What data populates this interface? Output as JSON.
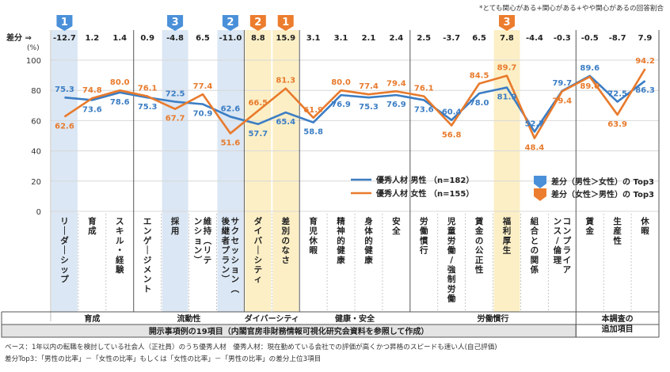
{
  "note_top": "*とても関心がある+関心がある+やや関心があるの回答割合",
  "diff_label": "差分 ⇒",
  "unit_label": "(%)",
  "group_footer": "開示事項例の19項目（内閣官房非財務情報可視化研究会資料を参照して作成）",
  "extra_footer": "本調査の\n追加項目",
  "footnotes": [
    "ベース：1年以内の転職を検討している社会人（正社員）のうち優秀人材　優秀人材：現在勤めている会社での評価が高くかつ昇格のスピードも速い人(自己評価)",
    "差分Top3：「男性の比率」－「女性の比率」もしくは「女性の比率」－「男性の比率」の差分上位3項目"
  ],
  "colors": {
    "male": "#3b7dc4",
    "female": "#e87a2c",
    "male_highlight": "#dbe7f4",
    "female_highlight": "#fcefc6",
    "male_tag": "#4a90d9",
    "female_tag": "#ec7d2e"
  },
  "chart_data": {
    "type": "line",
    "ylim": [
      0,
      100
    ],
    "yticks": [
      0,
      20,
      40,
      60,
      80,
      100
    ],
    "categories": [
      "リーダーシップ",
      "育成",
      "スキル・経験",
      "エンゲージメント",
      "採用",
      "維持（リテンション）",
      "サクセッション（後継者プラン）",
      "ダイバーシティ",
      "差別のなさ",
      "育児休暇",
      "精神的健康",
      "身体的健康",
      "安全",
      "労働慣行",
      "児童労働/強制労働",
      "賃金の公正性",
      "福利厚生",
      "組合との関係",
      "コンプライアンス/倫理",
      "賃金",
      "生産性",
      "休暇"
    ],
    "diff": [
      "-12.7",
      "1.2",
      "1.4",
      "0.9",
      "-4.8",
      "6.5",
      "-11.0",
      "8.8",
      "15.9",
      "3.1",
      "3.1",
      "2.1",
      "2.4",
      "2.5",
      "-3.7",
      "6.5",
      "7.8",
      "-4.4",
      "-0.3",
      "-0.5",
      "-8.7",
      "7.9"
    ],
    "series": [
      {
        "name": "優秀人材 男性",
        "n": "（n=182）",
        "values": [
          75.3,
          73.6,
          78.6,
          75.3,
          72.5,
          70.9,
          62.6,
          57.7,
          65.4,
          58.8,
          76.9,
          75.3,
          76.9,
          73.6,
          60.4,
          78.0,
          81.9,
          52.7,
          79.7,
          89.6,
          72.5,
          86.3
        ]
      },
      {
        "name": "優秀人材 女性",
        "n": "（n=155）",
        "values": [
          62.6,
          74.8,
          80.0,
          76.1,
          67.7,
          77.4,
          51.6,
          66.5,
          81.3,
          61.9,
          80.0,
          77.4,
          79.4,
          76.1,
          56.8,
          84.5,
          89.7,
          48.4,
          79.4,
          89.0,
          63.9,
          94.2
        ]
      }
    ],
    "highlights": [
      {
        "index": 0,
        "type": "male",
        "rank": "1"
      },
      {
        "index": 4,
        "type": "male",
        "rank": "3"
      },
      {
        "index": 6,
        "type": "male",
        "rank": "2"
      },
      {
        "index": 7,
        "type": "female",
        "rank": "2"
      },
      {
        "index": 8,
        "type": "female",
        "rank": "1"
      },
      {
        "index": 16,
        "type": "female",
        "rank": "3"
      }
    ],
    "groups": [
      {
        "label": "育成",
        "start": 0,
        "end": 2
      },
      {
        "label": "流動性",
        "start": 3,
        "end": 6
      },
      {
        "label": "ダイバーシティ",
        "start": 7,
        "end": 8
      },
      {
        "label": "健康・安全",
        "start": 9,
        "end": 12
      },
      {
        "label": "労働慣行",
        "start": 13,
        "end": 18
      },
      {
        "label": "",
        "start": 19,
        "end": 21
      }
    ],
    "legend": {
      "male_top3": "差分（男性＞女性）の Top3",
      "female_top3": "差分（女性＞男性）の Top3"
    }
  }
}
